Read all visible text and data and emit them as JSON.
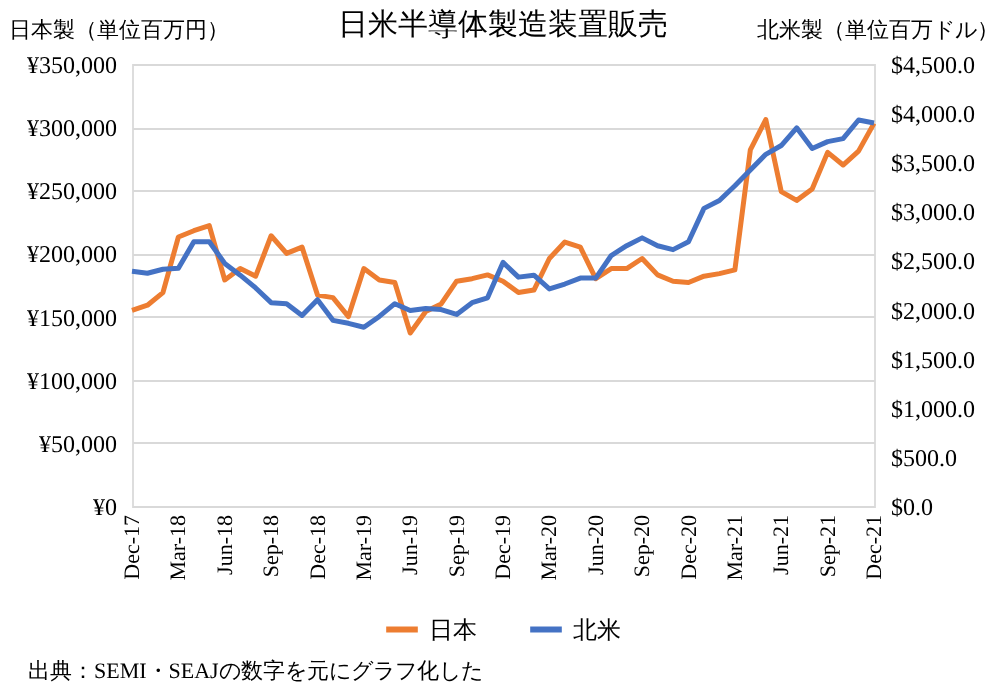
{
  "chart_data": {
    "type": "line",
    "title": "日米半導体製造装置販売",
    "ylabel": "日本製（単位百万円）",
    "y2label": "北米製（単位百万ドル）",
    "categories": [
      "Dec-17",
      null,
      null,
      "Mar-18",
      null,
      null,
      "Jun-18",
      null,
      null,
      "Sep-18",
      null,
      null,
      "Dec-18",
      null,
      null,
      "Mar-19",
      null,
      null,
      "Jun-19",
      null,
      null,
      "Sep-19",
      null,
      null,
      "Dec-19",
      null,
      null,
      "Mar-20",
      null,
      null,
      "Jun-20",
      null,
      null,
      "Sep-20",
      null,
      null,
      "Dec-20",
      null,
      null,
      "Mar-21",
      null,
      null,
      "Jun-21",
      null,
      null,
      "Sep-21",
      null,
      null,
      "Dec-21"
    ],
    "series": [
      {
        "name": "日本",
        "color": "#ed7d31",
        "values": [
          155000,
          159000,
          169000,
          213000,
          218000,
          222000,
          179000,
          188000,
          182000,
          214000,
          200000,
          205000,
          167000,
          165000,
          150000,
          188000,
          179000,
          177000,
          137000,
          154000,
          160000,
          178000,
          180000,
          183000,
          178000,
          169000,
          171000,
          196000,
          209000,
          205000,
          180000,
          188000,
          188000,
          196000,
          183000,
          178000,
          177000,
          182000,
          184000,
          187000,
          282000,
          306000,
          249000,
          242000,
          251000,
          280000,
          270000,
          281000,
          303000
        ]
      },
      {
        "name": "北米",
        "color": "#4472c4",
        "axis": "y2",
        "values": [
          2390,
          2370,
          2410,
          2420,
          2690,
          2690,
          2470,
          2350,
          2220,
          2070,
          2060,
          1940,
          2100,
          1890,
          1860,
          1820,
          1930,
          2060,
          1990,
          2010,
          2000,
          1950,
          2070,
          2120,
          2480,
          2330,
          2350,
          2210,
          2260,
          2320,
          2320,
          2550,
          2650,
          2730,
          2650,
          2610,
          2690,
          3030,
          3110,
          3260,
          3420,
          3580,
          3670,
          3850,
          3640,
          3710,
          3740,
          3930,
          3900
        ]
      }
    ],
    "ylim": [
      0,
      350000
    ],
    "yticks": [
      {
        "value": 0,
        "label": "¥0"
      },
      {
        "value": 50000,
        "label": "¥50,000"
      },
      {
        "value": 100000,
        "label": "¥100,000"
      },
      {
        "value": 150000,
        "label": "¥150,000"
      },
      {
        "value": 200000,
        "label": "¥200,000"
      },
      {
        "value": 250000,
        "label": "¥250,000"
      },
      {
        "value": 300000,
        "label": "¥300,000"
      },
      {
        "value": 350000,
        "label": "¥350,000"
      }
    ],
    "y2lim": [
      0,
      4500
    ],
    "y2ticks": [
      {
        "value": 0,
        "label": "$0.0"
      },
      {
        "value": 500,
        "label": "$500.0"
      },
      {
        "value": 1000,
        "label": "$1,000.0"
      },
      {
        "value": 1500,
        "label": "$1,500.0"
      },
      {
        "value": 2000,
        "label": "$2,000.0"
      },
      {
        "value": 2500,
        "label": "$2,500.0"
      },
      {
        "value": 3000,
        "label": "$3,000.0"
      },
      {
        "value": 3500,
        "label": "$3,500.0"
      },
      {
        "value": 4000,
        "label": "$4,000.0"
      },
      {
        "value": 4500,
        "label": "$4,500.0"
      }
    ],
    "grid": "y",
    "legend": "bottom",
    "marker": "none",
    "line_style": "solid",
    "annotations": [
      "出典：SEMI・SEAJの数字を元にグラフ化した"
    ]
  }
}
